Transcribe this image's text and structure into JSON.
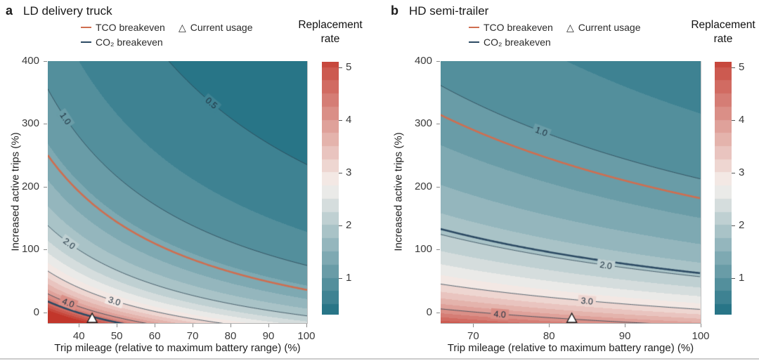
{
  "legend": {
    "tco_label": "TCO breakeven",
    "co2_label": "CO₂ breakeven",
    "usage_label": "Current usage"
  },
  "colorbar": {
    "title_lines": [
      "Replacement",
      "rate"
    ],
    "ticks": [
      1,
      2,
      3,
      4,
      5
    ],
    "vmin": 0.3,
    "vmax": 5.1,
    "band_step": 0.25
  },
  "colors": {
    "tco_line": "#cf6e50",
    "co2_line": "#2c4a63",
    "contour_line": "#2a4150",
    "teal_low": "#287587",
    "white_mid": "#f5f1ed",
    "red_high": "#c2362b",
    "marker_fill": "#ffffff",
    "marker_edge": "#1a1a1a",
    "spine": "#b0b0b0",
    "tick": "#8a8a8a"
  },
  "chart_data": [
    {
      "type": "filled-contour",
      "panel_label": "a",
      "title": "LD delivery truck",
      "xlabel": "Trip mileage (relative to maximum battery range) (%)",
      "ylabel": "Increased active trips (%)",
      "xlim": [
        31.8,
        100.2
      ],
      "ylim": [
        -17,
        400
      ],
      "xticks": [
        40,
        50,
        60,
        70,
        80,
        90,
        100
      ],
      "yticks": [
        0,
        100,
        200,
        300,
        400
      ],
      "rate_model": {
        "form": "replacement_rate = 1/(a + b*x + c*y + d*x*y)",
        "a": 0.018,
        "b": 0.005155,
        "c": 0.000472,
        "d": 5.75e-05
      },
      "contours": [
        {
          "level": 0.5,
          "label": "0.5",
          "label_x": 75
        },
        {
          "level": 1.0,
          "label": "1.0",
          "label_x": 36.5
        },
        {
          "level": 2.0,
          "label": "2.0",
          "label_x": 37.5
        },
        {
          "level": 3.0,
          "label": "3.0",
          "label_x": 49.4
        },
        {
          "level": 4.0,
          "label": "4.0",
          "label_x": 37.2
        }
      ],
      "tco_breakeven_level": 1.32,
      "co2_breakeven_level": 4.5,
      "current_usage": {
        "x": 43.5,
        "y": 0
      }
    },
    {
      "type": "filled-contour",
      "panel_label": "b",
      "title": "HD semi-trailer",
      "xlabel": "Trip mileage (relative to maximum battery range) (%)",
      "ylabel": "Increased active trips (%)",
      "xlim": [
        65.7,
        100
      ],
      "ylim": [
        -17,
        400
      ],
      "xticks": [
        70,
        80,
        90,
        100
      ],
      "yticks": [
        0,
        100,
        200,
        300,
        400
      ],
      "rate_model": {
        "form": "replacement_rate = 1/(a + b*x + c*y + d*x*y)",
        "a": 0.0853,
        "b": 0.002327,
        "c": 0,
        "d": 3.21e-05
      },
      "contours": [
        {
          "level": 1.0,
          "label": "1.0",
          "label_x": 79
        },
        {
          "level": 2.0,
          "label": "2.0",
          "label_x": 87.5
        },
        {
          "level": 3.0,
          "label": "3.0",
          "label_x": 85
        },
        {
          "level": 4.0,
          "label": "4.0",
          "label_x": 73.5
        }
      ],
      "tco_breakeven_level": 1.11,
      "co2_breakeven_level": 1.93,
      "current_usage": {
        "x": 83,
        "y": 0
      }
    }
  ]
}
